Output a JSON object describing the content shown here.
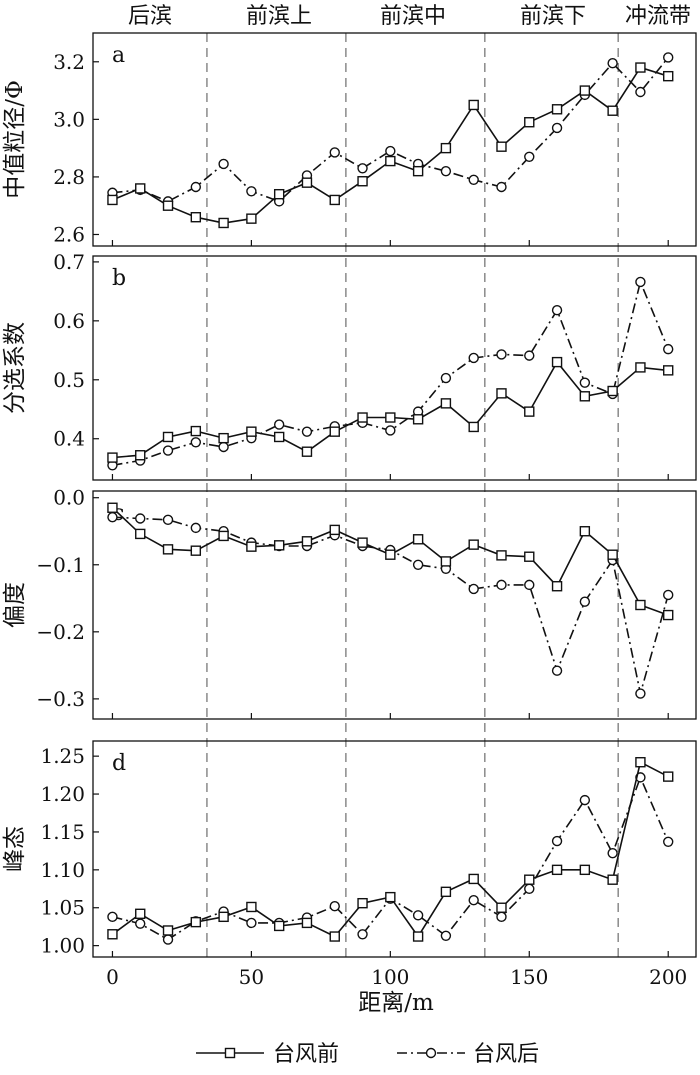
{
  "chart_data": {
    "type": "line",
    "zones": [
      "后滨",
      "前滨上",
      "前滨中",
      "前滨下",
      "冲流带"
    ],
    "zone_boundaries": [
      34,
      84,
      134,
      182
    ],
    "xlabel": "距离/m",
    "xlim": [
      -7,
      210
    ],
    "x_ticks": [
      0,
      50,
      100,
      150,
      200
    ],
    "x_tick_labels": [
      "0",
      "50",
      "100",
      "150",
      "200"
    ],
    "grid": false,
    "legend_placement": "bottom",
    "series_names": [
      "台风前",
      "台风后"
    ],
    "x": [
      0,
      10,
      20,
      30,
      40,
      50,
      60,
      70,
      80,
      90,
      100,
      110,
      120,
      130,
      140,
      150,
      160,
      170,
      180,
      190,
      200
    ],
    "panels": [
      {
        "letter": "a",
        "ylabel": "中值粒径/Φ",
        "ylim": [
          2.56,
          3.3
        ],
        "y_ticks": [
          2.6,
          2.8,
          3.0,
          3.2
        ],
        "y_tick_labels": [
          "2.6",
          "2.8",
          "3.0",
          "3.2"
        ],
        "series": [
          {
            "name": "台风前",
            "values": [
              2.72,
              2.76,
              2.7,
              2.66,
              2.64,
              2.655,
              2.74,
              2.78,
              2.72,
              2.785,
              2.855,
              2.82,
              2.9,
              3.05,
              2.905,
              2.99,
              3.035,
              3.1,
              3.03,
              3.18,
              3.15
            ]
          },
          {
            "name": "台风后",
            "values": [
              2.745,
              2.755,
              2.715,
              2.765,
              2.845,
              2.75,
              2.715,
              2.805,
              2.885,
              2.83,
              2.89,
              2.845,
              2.82,
              2.79,
              2.765,
              2.87,
              2.97,
              3.085,
              3.195,
              3.095,
              3.215
            ]
          }
        ]
      },
      {
        "letter": "b",
        "ylabel": "分选系数",
        "ylim": [
          0.33,
          0.71
        ],
        "y_ticks": [
          0.4,
          0.5,
          0.6,
          0.7
        ],
        "y_tick_labels": [
          "0.4",
          "0.5",
          "0.6",
          "0.7"
        ],
        "series": [
          {
            "name": "台风前",
            "values": [
              0.368,
              0.372,
              0.403,
              0.413,
              0.401,
              0.412,
              0.403,
              0.378,
              0.412,
              0.436,
              0.436,
              0.433,
              0.46,
              0.42,
              0.477,
              0.446,
              0.53,
              0.472,
              0.481,
              0.521,
              0.516
            ]
          },
          {
            "name": "台风后",
            "values": [
              0.355,
              0.363,
              0.38,
              0.394,
              0.386,
              0.401,
              0.424,
              0.412,
              0.421,
              0.427,
              0.414,
              0.446,
              0.503,
              0.537,
              0.543,
              0.541,
              0.618,
              0.495,
              0.476,
              0.666,
              0.552
            ]
          }
        ]
      },
      {
        "letter": "c",
        "ylabel": "偏度",
        "ylim": [
          -0.33,
          0.01
        ],
        "y_ticks": [
          0.0,
          -0.1,
          -0.2,
          -0.3
        ],
        "y_tick_labels": [
          "0.0",
          "−0.1",
          "−0.2",
          "−0.3"
        ],
        "series": [
          {
            "name": "台风前",
            "values": [
              -0.015,
              -0.054,
              -0.077,
              -0.079,
              -0.057,
              -0.073,
              -0.071,
              -0.065,
              -0.048,
              -0.067,
              -0.085,
              -0.062,
              -0.095,
              -0.07,
              -0.086,
              -0.088,
              -0.132,
              -0.05,
              -0.085,
              -0.16,
              -0.175
            ]
          },
          {
            "name": "台风后",
            "values": [
              -0.029,
              -0.031,
              -0.033,
              -0.045,
              -0.05,
              -0.067,
              -0.072,
              -0.072,
              -0.056,
              -0.072,
              -0.078,
              -0.1,
              -0.106,
              -0.136,
              -0.13,
              -0.13,
              -0.258,
              -0.155,
              -0.093,
              -0.292,
              -0.145
            ]
          }
        ]
      },
      {
        "letter": "d",
        "ylabel": "峰态",
        "ylim": [
          0.985,
          1.27
        ],
        "y_ticks": [
          1.0,
          1.05,
          1.1,
          1.15,
          1.2,
          1.25
        ],
        "y_tick_labels": [
          "1.00",
          "1.05",
          "1.10",
          "1.15",
          "1.20",
          "1.25"
        ],
        "series": [
          {
            "name": "台风前",
            "values": [
              1.015,
              1.042,
              1.02,
              1.031,
              1.038,
              1.051,
              1.026,
              1.03,
              1.012,
              1.056,
              1.064,
              1.012,
              1.071,
              1.088,
              1.05,
              1.087,
              1.1,
              1.1,
              1.087,
              1.242,
              1.223
            ]
          },
          {
            "name": "台风后",
            "values": [
              1.038,
              1.029,
              1.008,
              1.032,
              1.045,
              1.03,
              1.03,
              1.037,
              1.052,
              1.015,
              1.062,
              1.04,
              1.013,
              1.06,
              1.038,
              1.075,
              1.138,
              1.192,
              1.122,
              1.222,
              1.137
            ]
          }
        ]
      }
    ]
  }
}
